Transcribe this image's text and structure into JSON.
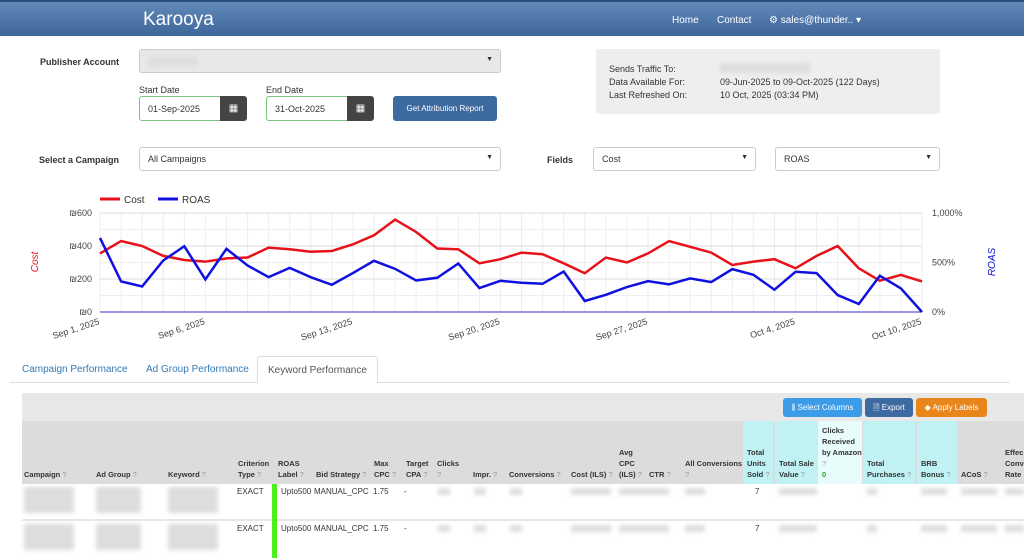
{
  "nav": {
    "logo": "Karooya",
    "home": "Home",
    "contact": "Contact",
    "user": "sales@thunder.."
  },
  "form": {
    "publisher_label": "Publisher Account",
    "start_label": "Start Date",
    "start_value": "01-Sep-2025",
    "end_label": "End Date",
    "end_value": "31-Oct-2025",
    "report_button": "Get Attribution Report",
    "campaign_label": "Select a Campaign",
    "campaign_value": "All Campaigns",
    "fields_label": "Fields",
    "field1": "Cost",
    "field2": "ROAS"
  },
  "info": {
    "sends_label": "Sends Traffic To:",
    "data_label": "Data Available For:",
    "data_value": "09-Jun-2025 to 09-Oct-2025 (122 Days)",
    "refresh_label": "Last Refreshed On:",
    "refresh_value": "10 Oct, 2025 (03:34 PM)"
  },
  "chart_data": {
    "type": "line",
    "x_start": "Sep 1, 2025",
    "x_end": "Oct 10, 2025",
    "x_tick_labels": [
      "Sep 1, 2025",
      "Sep 6, 2025",
      "Sep 13, 2025",
      "Sep 20, 2025",
      "Sep 27, 2025",
      "Oct 4, 2025",
      "Oct 10, 2025"
    ],
    "x_tick_days": [
      0,
      5,
      12,
      19,
      26,
      33,
      39
    ],
    "ylabel": "Cost",
    "y2label": "ROAS",
    "ylim": [
      0,
      600
    ],
    "y2lim": [
      0,
      1000
    ],
    "y_tick_labels": [
      "₪0",
      "₪200",
      "₪400",
      "₪600"
    ],
    "y2_tick_labels": [
      "0%",
      "500%",
      "1,000%"
    ],
    "legend": "top-left",
    "grid": true,
    "series": [
      {
        "name": "Cost",
        "axis": "left",
        "color": "#e8101a",
        "values": [
          355,
          430,
          400,
          340,
          315,
          305,
          325,
          330,
          390,
          380,
          365,
          370,
          410,
          465,
          560,
          485,
          385,
          380,
          295,
          320,
          360,
          350,
          295,
          235,
          330,
          300,
          355,
          430,
          395,
          360,
          285,
          305,
          320,
          265,
          340,
          400,
          265,
          190,
          225,
          185
        ]
      },
      {
        "name": "ROAS",
        "axis": "right",
        "color": "#1010e0",
        "values": [
          748,
          309,
          258,
          520,
          664,
          329,
          638,
          470,
          352,
          446,
          352,
          275,
          393,
          517,
          436,
          319,
          346,
          490,
          242,
          315,
          295,
          285,
          409,
          111,
          174,
          252,
          312,
          279,
          339,
          302,
          433,
          376,
          225,
          406,
          393,
          171,
          81,
          366,
          238,
          0
        ]
      }
    ]
  },
  "tabs": [
    "Campaign Performance",
    "Ad Group Performance",
    "Keyword Performance"
  ],
  "toolbar": {
    "select_columns": "Select Columns",
    "export": "Export",
    "apply_labels": "Apply Labels"
  },
  "table": {
    "headers": [
      "Campaign",
      "Ad Group",
      "Keyword",
      "Criterion Type",
      "ROAS Label",
      "Bid Strategy",
      "Max CPC",
      "Target CPA",
      "Clicks",
      "Impr.",
      "Conversions",
      "Cost (ILS)",
      "Avg CPC (ILS)",
      "CTR",
      "All Conversions",
      "Total Units Sold",
      "Total Sale Value",
      "Clicks Received by Amazon",
      "Total Purchases",
      "BRB Bonus",
      "ACoS",
      "Effec Conv Rate"
    ],
    "amazon_clicks_total": "0",
    "rows": [
      {
        "type": "EXACT",
        "roas_label": "Upto500",
        "bid": "MANUAL_CPC",
        "max_cpc": "1.75",
        "target_cpa": "-",
        "units": "7"
      },
      {
        "type": "EXACT",
        "roas_label": "Upto500",
        "bid": "MANUAL_CPC",
        "max_cpc": "1.75",
        "target_cpa": "-",
        "units": "7"
      }
    ]
  }
}
